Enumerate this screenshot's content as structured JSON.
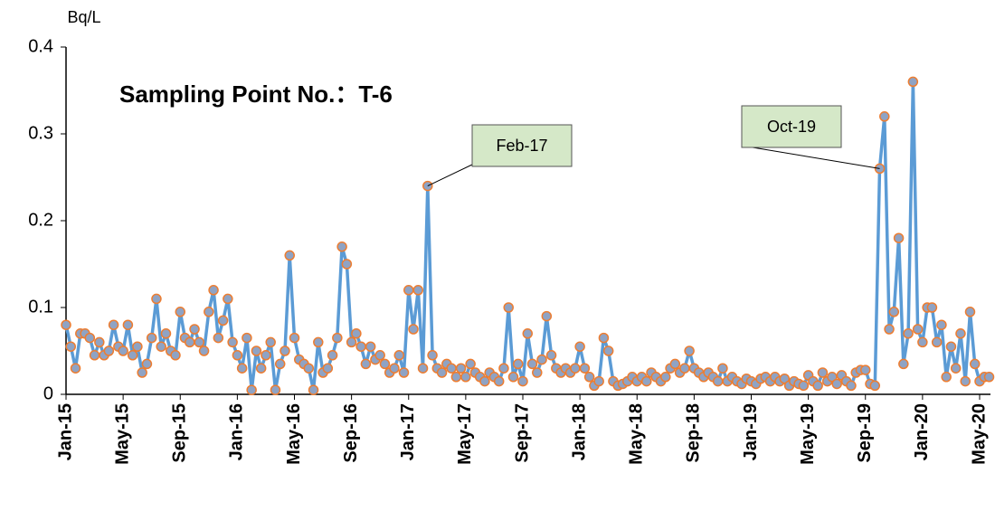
{
  "chart_data": {
    "type": "line",
    "title": "Sampling Point No.：T-6",
    "y_label": "Bq/L",
    "annotations": [
      "Feb-17",
      "Oct-19"
    ],
    "categories": [
      "Jan-15",
      null,
      null,
      null,
      null,
      null,
      null,
      null,
      null,
      null,
      null,
      null,
      "May-15",
      null,
      null,
      null,
      null,
      null,
      null,
      null,
      null,
      null,
      null,
      null,
      "Sep-15",
      null,
      null,
      null,
      null,
      null,
      null,
      null,
      null,
      null,
      null,
      null,
      "Jan-16",
      null,
      null,
      null,
      null,
      null,
      null,
      null,
      null,
      null,
      null,
      null,
      "May-16",
      null,
      null,
      null,
      null,
      null,
      null,
      null,
      null,
      null,
      null,
      null,
      "Sep-16",
      null,
      null,
      null,
      null,
      null,
      null,
      null,
      null,
      null,
      null,
      null,
      "Jan-17",
      null,
      null,
      null,
      null,
      null,
      null,
      null,
      null,
      null,
      null,
      null,
      "May-17",
      null,
      null,
      null,
      null,
      null,
      null,
      null,
      null,
      null,
      null,
      null,
      "Sep-17",
      null,
      null,
      null,
      null,
      null,
      null,
      null,
      null,
      null,
      null,
      null,
      "Jan-18",
      null,
      null,
      null,
      null,
      null,
      null,
      null,
      null,
      null,
      null,
      null,
      "May-18",
      null,
      null,
      null,
      null,
      null,
      null,
      null,
      null,
      null,
      null,
      null,
      "Sep-18",
      null,
      null,
      null,
      null,
      null,
      null,
      null,
      null,
      null,
      null,
      null,
      "Jan-19",
      null,
      null,
      null,
      null,
      null,
      null,
      null,
      null,
      null,
      null,
      null,
      "May-19",
      null,
      null,
      null,
      null,
      null,
      null,
      null,
      null,
      null,
      null,
      null,
      "Sep-19",
      null,
      null,
      null,
      null,
      null,
      null,
      null,
      null,
      null,
      null,
      null,
      "Jan-20",
      null,
      null,
      null,
      null,
      null,
      null,
      null,
      null,
      null,
      null,
      null,
      "May-20",
      null,
      null
    ],
    "series": [
      {
        "name": "T-6",
        "color": "#5b9bd5",
        "marker_color": "#ed7d31",
        "values": [
          0.08,
          0.055,
          0.03,
          0.07,
          0.07,
          0.065,
          0.045,
          0.06,
          0.045,
          0.05,
          0.08,
          0.055,
          0.05,
          0.08,
          0.045,
          0.055,
          0.025,
          0.035,
          0.065,
          0.11,
          0.055,
          0.07,
          0.05,
          0.045,
          0.095,
          0.065,
          0.06,
          0.075,
          0.06,
          0.05,
          0.095,
          0.12,
          0.065,
          0.085,
          0.11,
          0.06,
          0.045,
          0.03,
          0.065,
          0.005,
          0.05,
          0.03,
          0.045,
          0.06,
          0.005,
          0.035,
          0.05,
          0.16,
          0.065,
          0.04,
          0.035,
          0.03,
          0.005,
          0.06,
          0.025,
          0.03,
          0.045,
          0.065,
          0.17,
          0.15,
          0.06,
          0.07,
          0.055,
          0.035,
          0.055,
          0.04,
          0.045,
          0.035,
          0.025,
          0.03,
          0.045,
          0.025,
          0.12,
          0.075,
          0.12,
          0.03,
          0.24,
          0.045,
          0.03,
          0.025,
          0.035,
          0.03,
          0.02,
          0.03,
          0.02,
          0.035,
          0.025,
          0.02,
          0.015,
          0.025,
          0.02,
          0.015,
          0.03,
          0.1,
          0.02,
          0.035,
          0.015,
          0.07,
          0.035,
          0.025,
          0.04,
          0.09,
          0.045,
          0.03,
          0.025,
          0.03,
          0.025,
          0.03,
          0.055,
          0.03,
          0.02,
          0.01,
          0.015,
          0.065,
          0.05,
          0.015,
          0.01,
          0.012,
          0.015,
          0.02,
          0.015,
          0.02,
          0.015,
          0.025,
          0.02,
          0.015,
          0.02,
          0.03,
          0.035,
          0.025,
          0.03,
          0.05,
          0.03,
          0.025,
          0.02,
          0.025,
          0.02,
          0.015,
          0.03,
          0.015,
          0.02,
          0.015,
          0.012,
          0.018,
          0.015,
          0.012,
          0.018,
          0.02,
          0.015,
          0.02,
          0.015,
          0.018,
          0.01,
          0.015,
          0.012,
          0.01,
          0.022,
          0.015,
          0.01,
          0.025,
          0.015,
          0.02,
          0.012,
          0.022,
          0.015,
          0.01,
          0.025,
          0.028,
          0.028,
          0.012,
          0.01,
          0.26,
          0.32,
          0.075,
          0.095,
          0.18,
          0.035,
          0.07,
          0.36,
          0.075,
          0.06,
          0.1,
          0.1,
          0.06,
          0.08,
          0.02,
          0.055,
          0.03,
          0.07,
          0.015,
          0.095,
          0.035,
          0.015,
          0.02,
          0.02
        ]
      }
    ],
    "ylim": [
      0,
      0.4
    ],
    "yticks": [
      0,
      0.1,
      0.2,
      0.3,
      0.4
    ],
    "grid": false
  }
}
